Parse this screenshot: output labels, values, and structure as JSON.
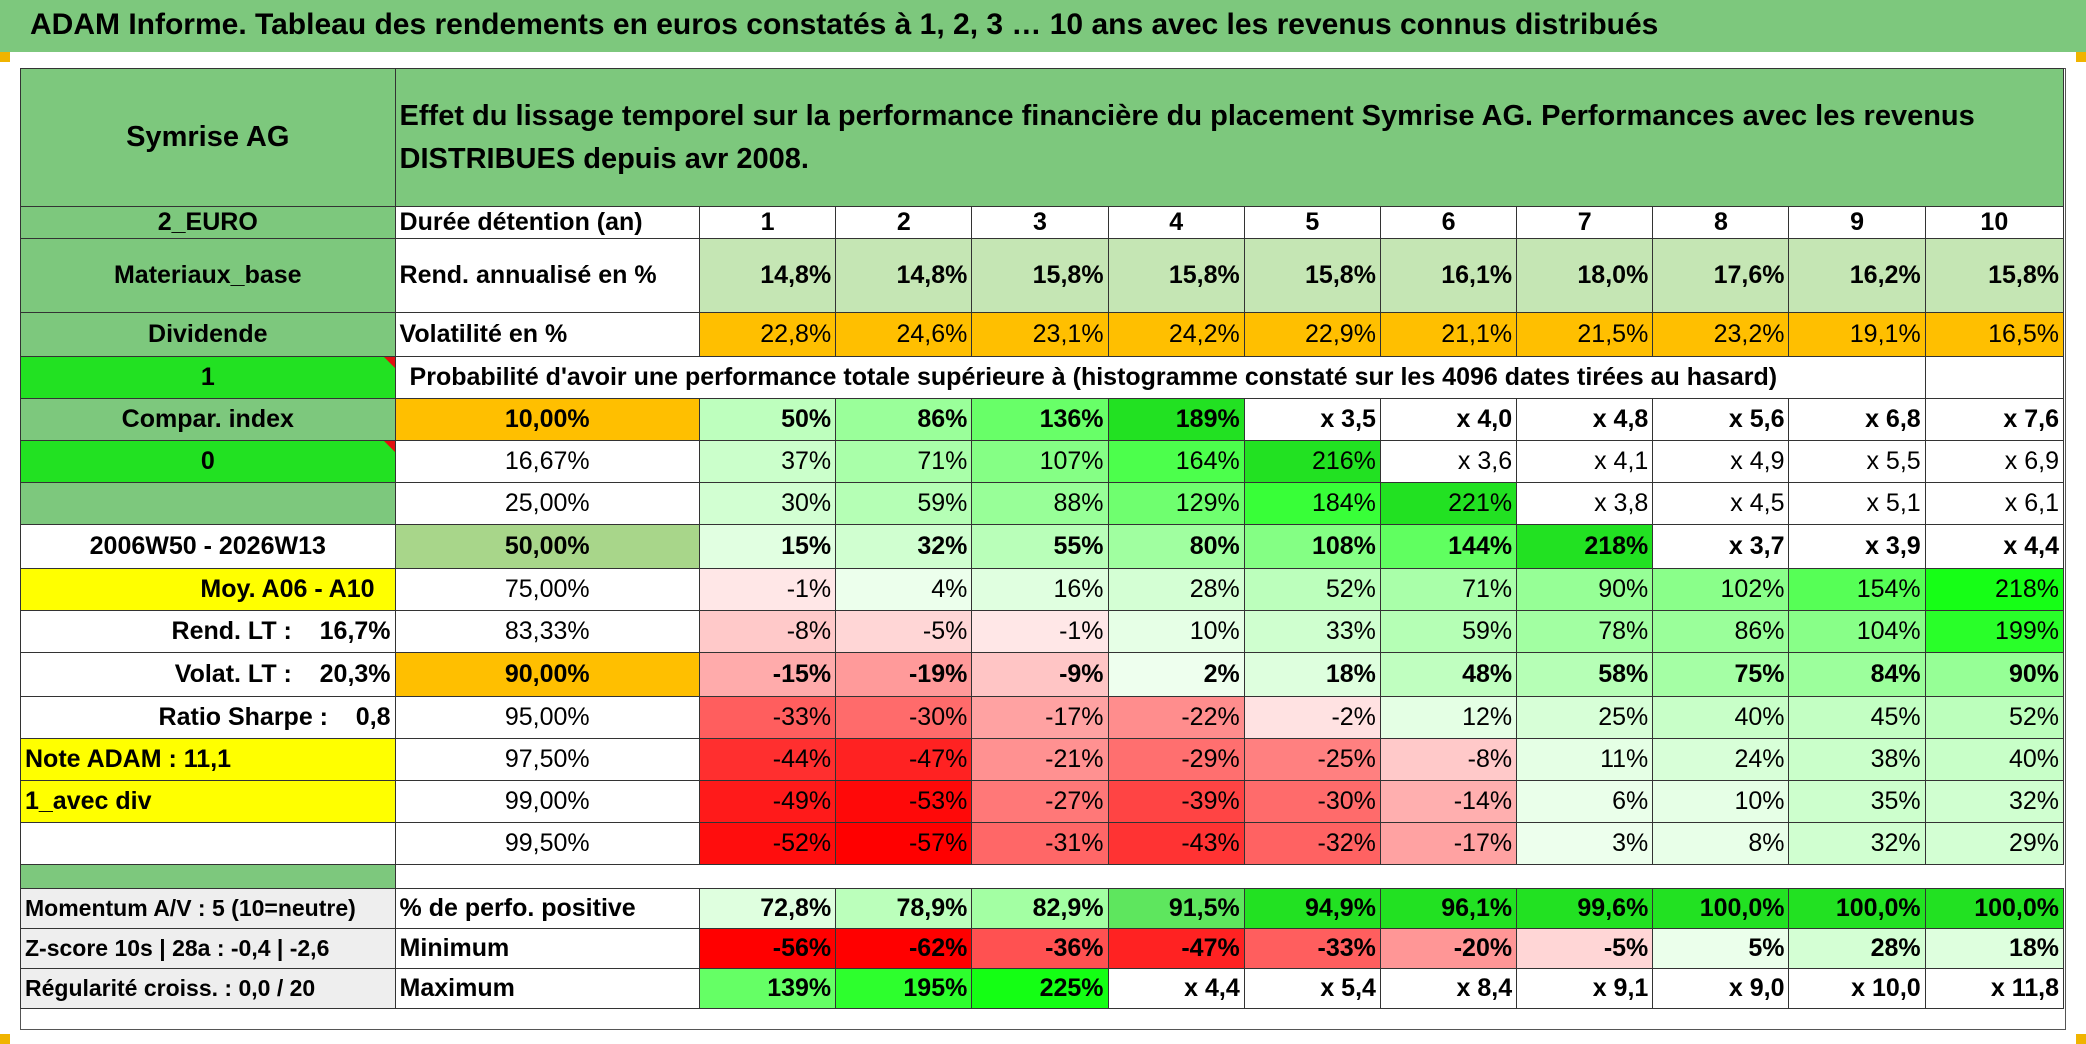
{
  "header": {
    "title": "ADAM Informe. Tableau des rendements en euros constatés à 1, 2, 3 … 10 ans avec les revenus connus distribués"
  },
  "colors": {
    "green_header": "#7dc87d",
    "bright_green": "#22e122",
    "orange": "#ffbf00",
    "yellow": "#ffff00",
    "red_text": "#e01010"
  },
  "left": {
    "name": "Symrise AG",
    "currency": "2_EURO",
    "sector": "Materiaux_base",
    "type": "Dividende",
    "flag1": "1",
    "compar": "Compar. index",
    "flag2": "0",
    "period": "2006W50 - 2026W13",
    "moy": "Moy. A06 - A10",
    "rend_lt": "Rend. LT :    16,7%",
    "volat_lt": "Volat. LT :    20,3%",
    "sharpe": "Ratio Sharpe :    0,8",
    "note": "Note ADAM : 11,1",
    "avec_div": "1_avec div",
    "momentum": "Momentum A/V : 5 (10=neutre)",
    "zscore": "Z-score 10s | 28a : -0,4 | -2,6",
    "regularite": "Régularité croiss. : 0,0 / 20"
  },
  "description": "Effet du lissage temporel sur la performance financière du placement Symrise AG. Performances avec les revenus DISTRIBUES depuis avr 2008.",
  "durations": {
    "label": "Durée détention (an)",
    "values": [
      "1",
      "2",
      "3",
      "4",
      "5",
      "6",
      "7",
      "8",
      "9",
      "10"
    ]
  },
  "rend": {
    "label": "Rend. annualisé en %",
    "values": [
      "14,8%",
      "14,8%",
      "15,8%",
      "15,8%",
      "15,8%",
      "16,1%",
      "18,0%",
      "17,6%",
      "16,2%",
      "15,8%"
    ]
  },
  "volat": {
    "label": "Volatilité en %",
    "values": [
      "22,8%",
      "24,6%",
      "23,1%",
      "24,2%",
      "22,9%",
      "21,1%",
      "21,5%",
      "23,2%",
      "19,1%",
      "16,5%"
    ]
  },
  "proba_title": "Probabilité d'avoir une performance totale supérieure à (histogramme constaté sur les 4096 dates tirées au hasard)",
  "prob_rows": [
    {
      "p": "10,00%",
      "values": [
        "50%",
        "86%",
        "136%",
        "189%",
        "x 3,5",
        "x 4,0",
        "x 4,8",
        "x 5,6",
        "x 6,8",
        "x 7,6"
      ]
    },
    {
      "p": "16,67%",
      "values": [
        "37%",
        "71%",
        "107%",
        "164%",
        "216%",
        "x 3,6",
        "x 4,1",
        "x 4,9",
        "x 5,5",
        "x 6,9"
      ]
    },
    {
      "p": "25,00%",
      "values": [
        "30%",
        "59%",
        "88%",
        "129%",
        "184%",
        "221%",
        "x 3,8",
        "x 4,5",
        "x 5,1",
        "x 6,1"
      ]
    },
    {
      "p": "50,00%",
      "values": [
        "15%",
        "32%",
        "55%",
        "80%",
        "108%",
        "144%",
        "218%",
        "x 3,7",
        "x 3,9",
        "x 4,4"
      ]
    },
    {
      "p": "75,00%",
      "values": [
        "-1%",
        "4%",
        "16%",
        "28%",
        "52%",
        "71%",
        "90%",
        "102%",
        "154%",
        "218%"
      ]
    },
    {
      "p": "83,33%",
      "values": [
        "-8%",
        "-5%",
        "-1%",
        "10%",
        "33%",
        "59%",
        "78%",
        "86%",
        "104%",
        "199%"
      ]
    },
    {
      "p": "90,00%",
      "values": [
        "-15%",
        "-19%",
        "-9%",
        "2%",
        "18%",
        "48%",
        "58%",
        "75%",
        "84%",
        "90%"
      ]
    },
    {
      "p": "95,00%",
      "values": [
        "-33%",
        "-30%",
        "-17%",
        "-22%",
        "-2%",
        "12%",
        "25%",
        "40%",
        "45%",
        "52%"
      ]
    },
    {
      "p": "97,50%",
      "values": [
        "-44%",
        "-47%",
        "-21%",
        "-29%",
        "-25%",
        "-8%",
        "11%",
        "24%",
        "38%",
        "40%"
      ]
    },
    {
      "p": "99,00%",
      "values": [
        "-49%",
        "-53%",
        "-27%",
        "-39%",
        "-30%",
        "-14%",
        "6%",
        "10%",
        "35%",
        "32%"
      ]
    },
    {
      "p": "99,50%",
      "values": [
        "-52%",
        "-57%",
        "-31%",
        "-43%",
        "-32%",
        "-17%",
        "3%",
        "8%",
        "32%",
        "29%"
      ]
    }
  ],
  "stats": [
    {
      "label": "% de perfo. positive",
      "values": [
        "72,8%",
        "78,9%",
        "82,9%",
        "91,5%",
        "94,9%",
        "96,1%",
        "99,6%",
        "100,0%",
        "100,0%",
        "100,0%"
      ]
    },
    {
      "label": "Minimum",
      "values": [
        "-56%",
        "-62%",
        "-36%",
        "-47%",
        "-33%",
        "-20%",
        "-5%",
        "5%",
        "28%",
        "18%"
      ]
    },
    {
      "label": "Maximum",
      "values": [
        "139%",
        "195%",
        "225%",
        "x 4,4",
        "x 5,4",
        "x 8,4",
        "x 9,1",
        "x 9,0",
        "x 10,0",
        "x 11,8"
      ]
    }
  ]
}
